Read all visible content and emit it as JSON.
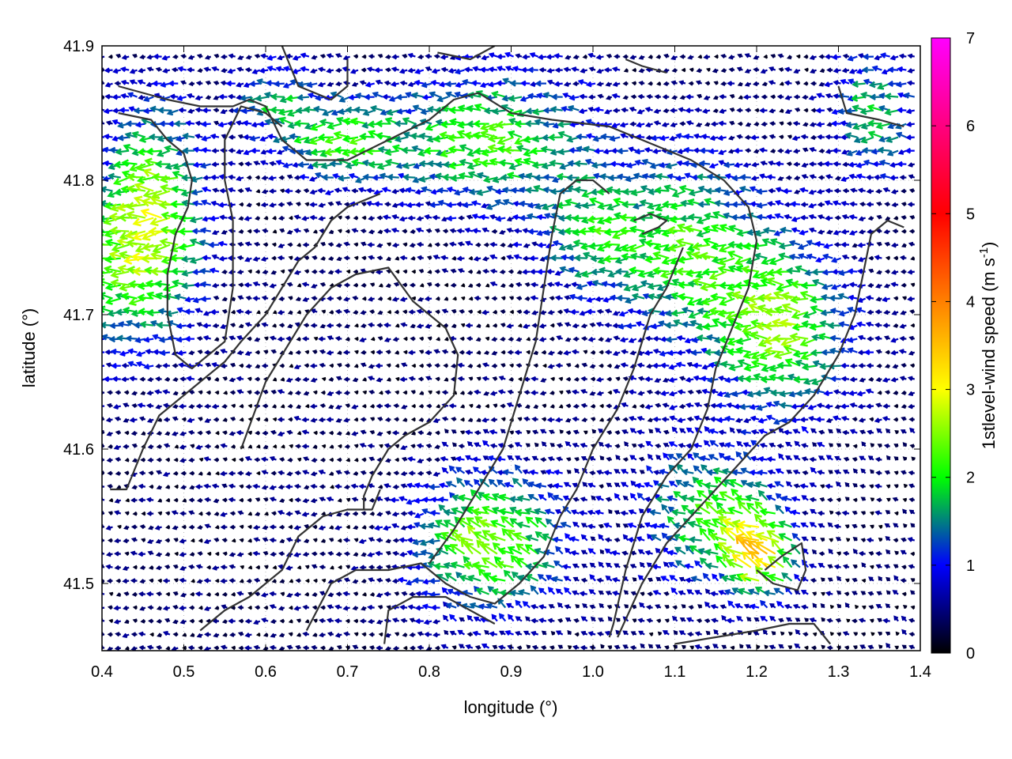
{
  "chart_data": {
    "type": "vector-field",
    "xlabel": "longitude (°)",
    "ylabel": "latitude (°)",
    "xlim": [
      0.4,
      1.4
    ],
    "ylim": [
      41.45,
      41.9
    ],
    "xticks": [
      "0.4",
      "0.5",
      "0.6",
      "0.7",
      "0.8",
      "0.9",
      "1.0",
      "1.1",
      "1.2",
      "1.3",
      "1.4"
    ],
    "yticks": [
      "41.5",
      "41.6",
      "41.7",
      "41.8",
      "41.9"
    ],
    "grid": true,
    "legend": "none",
    "colorbar": {
      "label_prefix": "1stlevel-wind speed (m s",
      "label_exponent": "-1",
      "label_suffix": ")",
      "range": [
        0,
        7
      ],
      "ticks": [
        "0",
        "1",
        "2",
        "3",
        "4",
        "5",
        "6",
        "7"
      ],
      "colormap": [
        "#000000",
        "#0000ff",
        "#00ff00",
        "#ffff00",
        "#ff0000",
        "#ff00ff"
      ],
      "colormap_stops": [
        0,
        1,
        2,
        3,
        5,
        7
      ]
    },
    "field_description": "wind vectors on regular grid, arrows predominantly pointing west; speeds mostly 0-3.5 m/s",
    "outline_color": "#333333",
    "arrow_grid": {
      "dx_deg": 0.01,
      "dy_deg": 0.01
    }
  }
}
